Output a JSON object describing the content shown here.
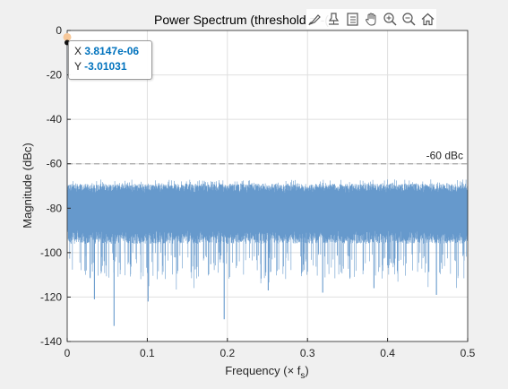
{
  "toolbar": {
    "icons": [
      "brush-icon",
      "data-tip-icon",
      "legend-icon",
      "pan-hand-icon",
      "zoom-in-icon",
      "zoom-out-icon",
      "home-icon"
    ]
  },
  "datatip": {
    "x_label": "X",
    "x_value": "3.8147e-06",
    "y_label": "Y",
    "y_value": "-3.01031"
  },
  "threshold_label": "-60 dBc",
  "colors": {
    "series": "#6699cc",
    "threshold": "#a6a6a6",
    "marker": "#f7c89a",
    "datatip_value": "#0072bd"
  },
  "chart_data": {
    "type": "line",
    "title": "Power Spectrum (threshold = -(",
    "xlabel": "Frequency (× f",
    "xlabel_subscript": "s",
    "xlabel_suffix": ")",
    "ylabel": "Magnitude (dBc)",
    "xlim": [
      0,
      0.5
    ],
    "ylim": [
      -140,
      0
    ],
    "xticks": [
      0,
      0.1,
      0.2,
      0.3,
      0.4,
      0.5
    ],
    "xtick_labels": [
      "0",
      "0.1",
      "0.2",
      "0.3",
      "0.4",
      "0.5"
    ],
    "yticks": [
      0,
      -20,
      -40,
      -60,
      -80,
      -100,
      -120,
      -140
    ],
    "ytick_labels": [
      "0",
      "-20",
      "-40",
      "-60",
      "-80",
      "-100",
      "-120",
      "-140"
    ],
    "grid": true,
    "threshold": -60,
    "series": [
      {
        "values_description": "noise floor",
        "peak": {
          "x": 3.8147e-06,
          "y": -3.01031
        },
        "band_upper_mean": -71,
        "band_dense_lower": -96,
        "band_spikes_lower_min": -133,
        "deep_spikes": [
          {
            "x": 0.0585,
            "y": -133
          },
          {
            "x": 0.196,
            "y": -130
          },
          {
            "x": 0.101,
            "y": -122
          },
          {
            "x": 0.319,
            "y": -118
          },
          {
            "x": 0.461,
            "y": -119
          },
          {
            "x": 0.383,
            "y": -116
          },
          {
            "x": 0.034,
            "y": -121
          },
          {
            "x": 0.251,
            "y": -117
          }
        ]
      }
    ],
    "highlighted_point": {
      "x": 3.8147e-06,
      "y": -3.01031
    }
  }
}
